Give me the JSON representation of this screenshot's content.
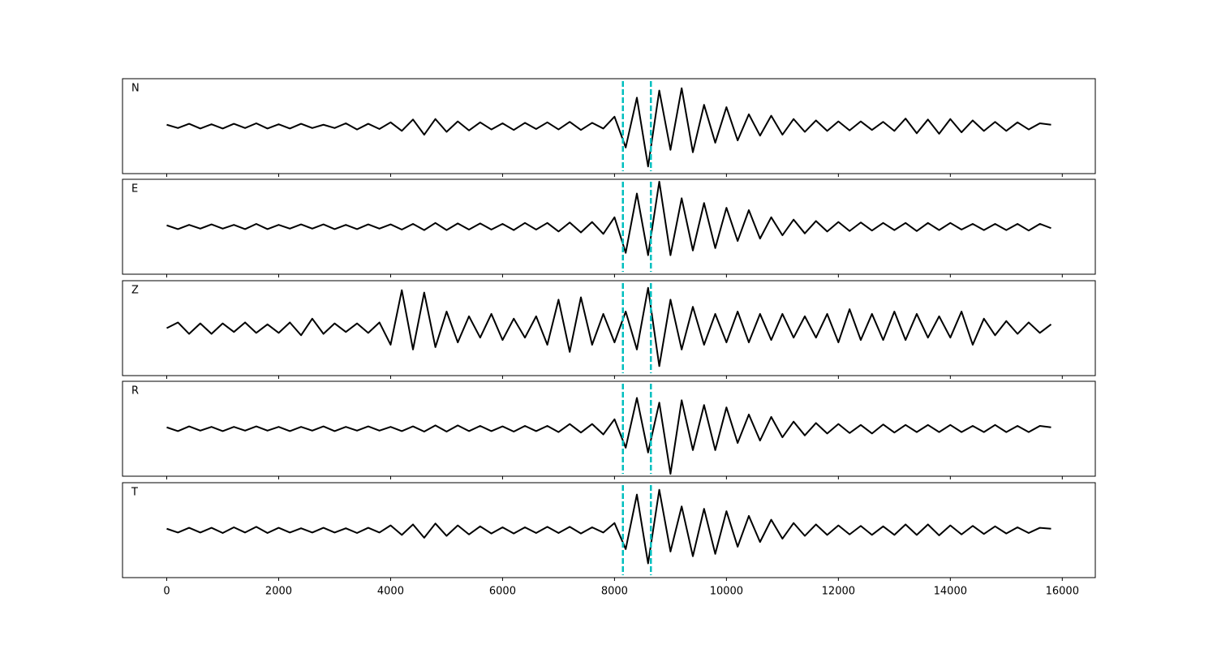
{
  "chart_data": {
    "type": "line",
    "x": [
      0,
      200,
      400,
      600,
      800,
      1000,
      1200,
      1400,
      1600,
      1800,
      2000,
      2200,
      2400,
      2600,
      2800,
      3000,
      3200,
      3400,
      3600,
      3800,
      4000,
      4200,
      4400,
      4600,
      4800,
      5000,
      5200,
      5400,
      5600,
      5800,
      6000,
      6200,
      6400,
      6600,
      6800,
      7000,
      7200,
      7400,
      7600,
      7800,
      8000,
      8200,
      8400,
      8600,
      8800,
      9000,
      9200,
      9400,
      9600,
      9800,
      10000,
      10200,
      10400,
      10600,
      10800,
      11000,
      11200,
      11400,
      11600,
      11800,
      12000,
      12200,
      12400,
      12600,
      12800,
      13000,
      13200,
      13400,
      13600,
      13800,
      14000,
      14200,
      14400,
      14600,
      14800,
      15000,
      15200,
      15400,
      15600,
      15800
    ],
    "xlim": [
      -790,
      16590
    ],
    "xticks": [
      0,
      2000,
      4000,
      6000,
      8000,
      10000,
      12000,
      14000,
      16000
    ],
    "ylim": [
      -1,
      1
    ],
    "vlines": [
      8150,
      8650
    ],
    "vline_color": "#00bfbf",
    "series": [
      {
        "name": "N",
        "color": "#000000",
        "values": [
          0.03,
          -0.04,
          0.05,
          -0.05,
          0.04,
          -0.05,
          0.05,
          -0.04,
          0.06,
          -0.05,
          0.04,
          -0.05,
          0.05,
          -0.04,
          0.03,
          -0.04,
          0.06,
          -0.07,
          0.05,
          -0.06,
          0.08,
          -0.1,
          0.14,
          -0.18,
          0.15,
          -0.12,
          0.1,
          -0.09,
          0.08,
          -0.07,
          0.06,
          -0.08,
          0.07,
          -0.06,
          0.08,
          -0.07,
          0.09,
          -0.08,
          0.07,
          -0.05,
          0.2,
          -0.45,
          0.6,
          -0.85,
          0.75,
          -0.5,
          0.8,
          -0.55,
          0.45,
          -0.35,
          0.4,
          -0.3,
          0.25,
          -0.2,
          0.22,
          -0.18,
          0.15,
          -0.12,
          0.12,
          -0.1,
          0.1,
          -0.09,
          0.1,
          -0.08,
          0.09,
          -0.1,
          0.16,
          -0.15,
          0.14,
          -0.16,
          0.15,
          -0.13,
          0.12,
          -0.1,
          0.09,
          -0.1,
          0.08,
          -0.07,
          0.06,
          0.03
        ]
      },
      {
        "name": "E",
        "color": "#000000",
        "values": [
          0.03,
          -0.05,
          0.04,
          -0.04,
          0.05,
          -0.04,
          0.04,
          -0.05,
          0.06,
          -0.05,
          0.04,
          -0.04,
          0.05,
          -0.04,
          0.05,
          -0.05,
          0.04,
          -0.05,
          0.05,
          -0.04,
          0.05,
          -0.06,
          0.06,
          -0.07,
          0.08,
          -0.07,
          0.07,
          -0.06,
          0.07,
          -0.06,
          0.06,
          -0.07,
          0.08,
          -0.06,
          0.08,
          -0.1,
          0.09,
          -0.12,
          0.1,
          -0.15,
          0.2,
          -0.55,
          0.7,
          -0.6,
          0.95,
          -0.6,
          0.6,
          -0.5,
          0.5,
          -0.45,
          0.4,
          -0.3,
          0.35,
          -0.25,
          0.2,
          -0.18,
          0.15,
          -0.14,
          0.12,
          -0.1,
          0.1,
          -0.09,
          0.09,
          -0.08,
          0.08,
          -0.07,
          0.08,
          -0.09,
          0.08,
          -0.07,
          0.08,
          -0.06,
          0.06,
          -0.07,
          0.06,
          -0.07,
          0.06,
          -0.08,
          0.06,
          -0.03
        ]
      },
      {
        "name": "Z",
        "color": "#000000",
        "values": [
          0.0,
          0.12,
          -0.12,
          0.1,
          -0.12,
          0.1,
          -0.08,
          0.12,
          -0.1,
          0.08,
          -0.1,
          0.12,
          -0.15,
          0.2,
          -0.12,
          0.1,
          -0.08,
          0.1,
          -0.1,
          0.12,
          -0.35,
          0.8,
          -0.45,
          0.75,
          -0.4,
          0.35,
          -0.3,
          0.25,
          -0.2,
          0.3,
          -0.25,
          0.2,
          -0.2,
          0.25,
          -0.35,
          0.6,
          -0.5,
          0.65,
          -0.35,
          0.3,
          -0.3,
          0.35,
          -0.45,
          0.85,
          -0.8,
          0.6,
          -0.45,
          0.45,
          -0.35,
          0.3,
          -0.3,
          0.35,
          -0.3,
          0.3,
          -0.25,
          0.3,
          -0.2,
          0.25,
          -0.2,
          0.3,
          -0.3,
          0.4,
          -0.25,
          0.3,
          -0.25,
          0.35,
          -0.25,
          0.3,
          -0.2,
          0.25,
          -0.2,
          0.35,
          -0.35,
          0.2,
          -0.15,
          0.15,
          -0.12,
          0.12,
          -0.1,
          0.08
        ]
      },
      {
        "name": "R",
        "color": "#000000",
        "values": [
          0.03,
          -0.05,
          0.05,
          -0.04,
          0.04,
          -0.05,
          0.04,
          -0.04,
          0.05,
          -0.04,
          0.04,
          -0.05,
          0.04,
          -0.04,
          0.05,
          -0.05,
          0.04,
          -0.04,
          0.05,
          -0.04,
          0.04,
          -0.05,
          0.05,
          -0.06,
          0.07,
          -0.06,
          0.07,
          -0.05,
          0.06,
          -0.05,
          0.05,
          -0.06,
          0.06,
          -0.05,
          0.06,
          -0.07,
          0.1,
          -0.08,
          0.1,
          -0.12,
          0.2,
          -0.4,
          0.65,
          -0.5,
          0.55,
          -0.95,
          0.6,
          -0.45,
          0.5,
          -0.45,
          0.45,
          -0.3,
          0.3,
          -0.25,
          0.25,
          -0.18,
          0.15,
          -0.14,
          0.12,
          -0.1,
          0.1,
          -0.09,
          0.08,
          -0.1,
          0.09,
          -0.08,
          0.08,
          -0.07,
          0.08,
          -0.07,
          0.08,
          -0.07,
          0.06,
          -0.07,
          0.08,
          -0.07,
          0.06,
          -0.07,
          0.06,
          0.03
        ]
      },
      {
        "name": "T",
        "color": "#000000",
        "values": [
          0.03,
          -0.05,
          0.05,
          -0.05,
          0.05,
          -0.06,
          0.06,
          -0.05,
          0.07,
          -0.06,
          0.05,
          -0.05,
          0.04,
          -0.05,
          0.05,
          -0.05,
          0.04,
          -0.06,
          0.05,
          -0.05,
          0.1,
          -0.1,
          0.12,
          -0.16,
          0.14,
          -0.12,
          0.1,
          -0.09,
          0.08,
          -0.07,
          0.06,
          -0.07,
          0.06,
          -0.06,
          0.07,
          -0.06,
          0.07,
          -0.07,
          0.06,
          -0.05,
          0.15,
          -0.4,
          0.75,
          -0.7,
          0.85,
          -0.45,
          0.5,
          -0.55,
          0.45,
          -0.5,
          0.4,
          -0.35,
          0.3,
          -0.25,
          0.22,
          -0.18,
          0.15,
          -0.12,
          0.12,
          -0.1,
          0.1,
          -0.09,
          0.09,
          -0.1,
          0.08,
          -0.1,
          0.12,
          -0.1,
          0.12,
          -0.11,
          0.1,
          -0.09,
          0.09,
          -0.08,
          0.08,
          -0.07,
          0.06,
          -0.06,
          0.05,
          0.03
        ]
      }
    ]
  }
}
